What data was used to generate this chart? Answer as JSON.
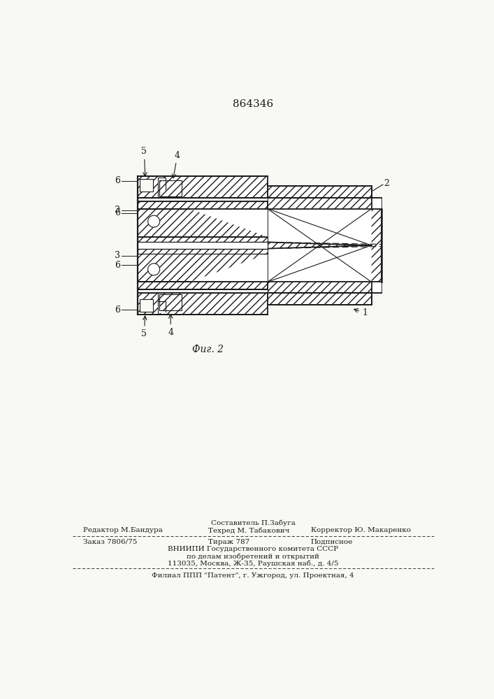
{
  "patent_number": "864346",
  "fig_label": "Фиг. 2",
  "bg_color": "#f8f8f5",
  "line_color": "#1a1a1a",
  "footer_line1": "Составитель П.Забуга",
  "footer_line2_left": "Редактор М.Бандура",
  "footer_line2_mid": "Техред М. Табакович",
  "footer_line2_right": "Корректор Ю. Макаренко",
  "footer_line3_left": "Заказ 7806/75",
  "footer_line3_mid": "Тираж 787",
  "footer_line3_right": "Подписное",
  "footer_line4": "ВНИИПИ Государственного комитета СССР",
  "footer_line5": "по делам изобретений и открытий",
  "footer_line6": "113035, Москва, Ж-35, Раушская наб., д. 4/5",
  "footer_line7": "Филиал ППП \"Патент\", г. Ужгород, ул. Проектная, 4"
}
